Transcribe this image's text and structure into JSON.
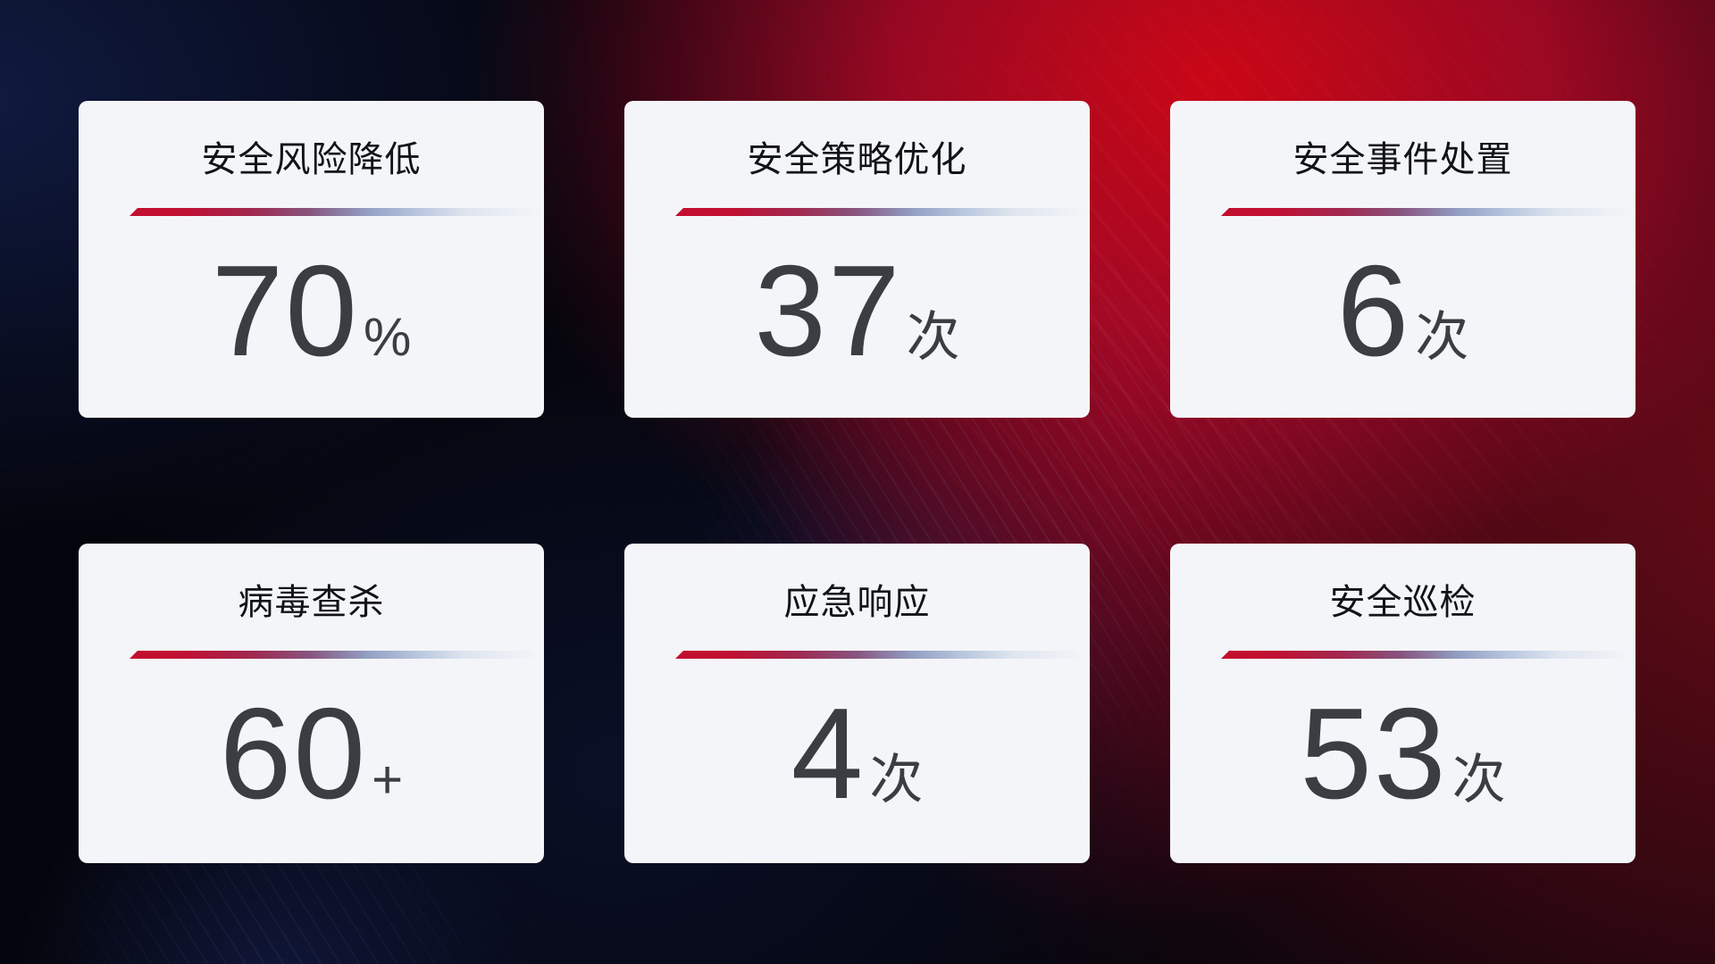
{
  "cards": [
    {
      "title": "安全风险降低",
      "value": "70",
      "unit": "%"
    },
    {
      "title": "安全策略优化",
      "value": "37",
      "unit": "次"
    },
    {
      "title": "安全事件处置",
      "value": "6",
      "unit": "次"
    },
    {
      "title": "病毒查杀",
      "value": "60",
      "unit": "+"
    },
    {
      "title": "应急响应",
      "value": "4",
      "unit": "次"
    },
    {
      "title": "安全巡检",
      "value": "53",
      "unit": "次"
    }
  ],
  "colors": {
    "accent_red": "#c50e2f",
    "divider_blue": "#b8c6de",
    "card_bg": "#f4f5f8",
    "title_text": "#121318",
    "value_text": "#3c3d42",
    "bg_red_glow": "#b00a26",
    "bg_navy": "#101c44"
  }
}
